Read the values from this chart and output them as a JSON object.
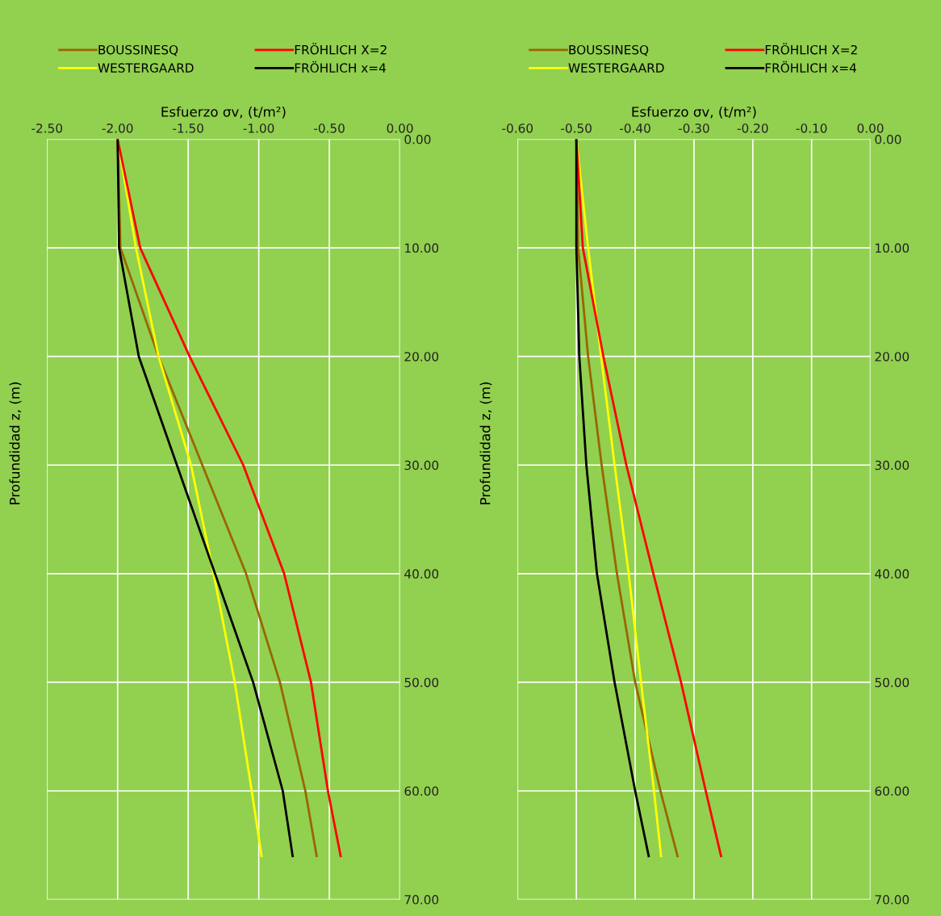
{
  "chart_data": [
    {
      "type": "line",
      "xlabel": "Esfuerzo σv, (t/m²)",
      "ylabel": "Profundidad z, (m)",
      "xlim": [
        -2.5,
        0
      ],
      "xticks": [
        {
          "value": -2.5,
          "label": "-2.50"
        },
        {
          "value": -2.0,
          "label": "-2.00"
        },
        {
          "value": -1.5,
          "label": "-1.50"
        },
        {
          "value": -1.0,
          "label": "-1.00"
        },
        {
          "value": -0.5,
          "label": "-0.50"
        },
        {
          "value": 0,
          "label": "0.00"
        }
      ],
      "ylim": [
        70,
        0
      ],
      "yticks": [
        {
          "value": 0,
          "label": "0.00"
        },
        {
          "value": 10,
          "label": "10.00"
        },
        {
          "value": 20,
          "label": "20.00"
        },
        {
          "value": 30,
          "label": "30.00"
        },
        {
          "value": 40,
          "label": "40.00"
        },
        {
          "value": 50,
          "label": "50.00"
        },
        {
          "value": 60,
          "label": "60.00"
        },
        {
          "value": 70,
          "label": "70.00"
        }
      ],
      "grid": true,
      "legend": "top",
      "series": [
        {
          "name": "BOUSSINESQ",
          "color": "#996600",
          "x": [
            -2.0,
            -1.98,
            -1.71,
            -1.4,
            -1.09,
            -0.85,
            -0.67,
            -0.59
          ],
          "values": [
            0,
            10,
            20,
            30,
            40,
            50,
            60,
            66
          ]
        },
        {
          "name": "WESTERGAARD",
          "color": "#ffff00",
          "x": [
            -2.0,
            -1.87,
            -1.71,
            -1.48,
            -1.32,
            -1.17,
            -1.05,
            -0.98
          ],
          "values": [
            0,
            10,
            20,
            30,
            40,
            50,
            60,
            66
          ]
        },
        {
          "name": "FRÖHLICH X=2",
          "color": "#ff0000",
          "x": [
            -2.0,
            -1.84,
            -1.49,
            -1.11,
            -0.82,
            -0.63,
            -0.51,
            -0.42
          ],
          "values": [
            0,
            10,
            20,
            30,
            40,
            50,
            60,
            66
          ]
        },
        {
          "name": "FRÖHLICH x=4",
          "color": "#000000",
          "x": [
            -2.0,
            -1.99,
            -1.85,
            -1.58,
            -1.31,
            -1.04,
            -0.83,
            -0.76
          ],
          "values": [
            0,
            10,
            20,
            30,
            40,
            50,
            60,
            66
          ]
        }
      ]
    },
    {
      "type": "line",
      "xlabel": "Esfuerzo σv, (t/m²)",
      "ylabel": "Profundidad z, (m)",
      "xlim": [
        -0.6,
        0
      ],
      "xticks": [
        {
          "value": -0.6,
          "label": "-0.60"
        },
        {
          "value": -0.5,
          "label": "-0.50"
        },
        {
          "value": -0.4,
          "label": "-0.40"
        },
        {
          "value": -0.3,
          "label": "-0.30"
        },
        {
          "value": -0.2,
          "label": "-0.20"
        },
        {
          "value": -0.1,
          "label": "-0.10"
        },
        {
          "value": 0,
          "label": "0.00"
        }
      ],
      "ylim": [
        70,
        0
      ],
      "yticks": [
        {
          "value": 0,
          "label": "0.00"
        },
        {
          "value": 10,
          "label": "10.00"
        },
        {
          "value": 20,
          "label": "20.00"
        },
        {
          "value": 30,
          "label": "30.00"
        },
        {
          "value": 40,
          "label": "40.00"
        },
        {
          "value": 50,
          "label": "50.00"
        },
        {
          "value": 60,
          "label": "60.00"
        },
        {
          "value": 70,
          "label": "70.00"
        }
      ],
      "grid": true,
      "legend": "top",
      "series": [
        {
          "name": "BOUSSINESQ",
          "color": "#996600",
          "x": [
            -0.5,
            -0.497,
            -0.48,
            -0.457,
            -0.431,
            -0.4,
            -0.357,
            -0.328
          ],
          "values": [
            0,
            10,
            20,
            30,
            40,
            50,
            60,
            66
          ]
        },
        {
          "name": "WESTERGAARD",
          "color": "#ffff00",
          "x": [
            -0.5,
            -0.48,
            -0.458,
            -0.435,
            -0.411,
            -0.39,
            -0.368,
            -0.356
          ],
          "values": [
            0,
            10,
            20,
            30,
            40,
            50,
            60,
            66
          ]
        },
        {
          "name": "FRÖHLICH X=2",
          "color": "#ff0000",
          "x": [
            -0.5,
            -0.489,
            -0.454,
            -0.415,
            -0.369,
            -0.322,
            -0.28,
            -0.254
          ],
          "values": [
            0,
            10,
            20,
            30,
            40,
            50,
            60,
            66
          ]
        },
        {
          "name": "FRÖHLICH x=4",
          "color": "#000000",
          "x": [
            -0.5,
            -0.5,
            -0.495,
            -0.483,
            -0.465,
            -0.435,
            -0.4,
            -0.377
          ],
          "values": [
            0,
            10,
            20,
            30,
            40,
            50,
            60,
            66
          ]
        }
      ]
    }
  ]
}
